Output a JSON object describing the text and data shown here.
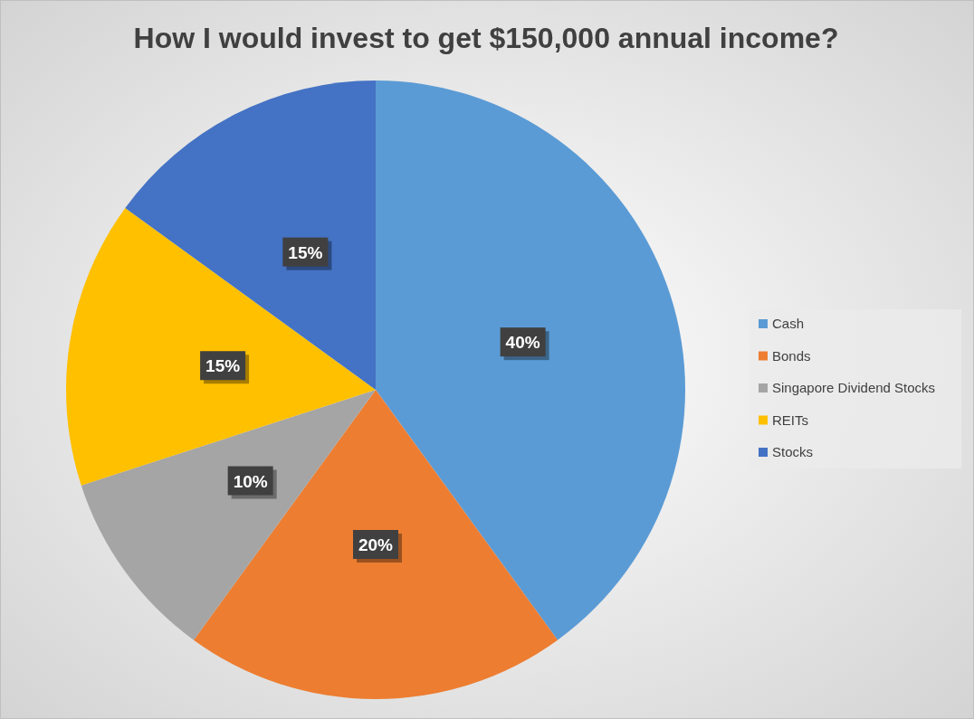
{
  "chart_data": {
    "type": "pie",
    "title": "How I would invest to get $150,000 annual income?",
    "categories": [
      "Cash",
      "Bonds",
      "Singapore Dividend Stocks",
      "REITs",
      "Stocks"
    ],
    "values": [
      40,
      20,
      10,
      15,
      15
    ],
    "colors": [
      "#5b9bd5",
      "#ed7d31",
      "#a5a5a5",
      "#ffc000",
      "#4472c4"
    ],
    "value_labels": [
      "40%",
      "20%",
      "10%",
      "15%",
      "15%"
    ],
    "legend": "right"
  }
}
